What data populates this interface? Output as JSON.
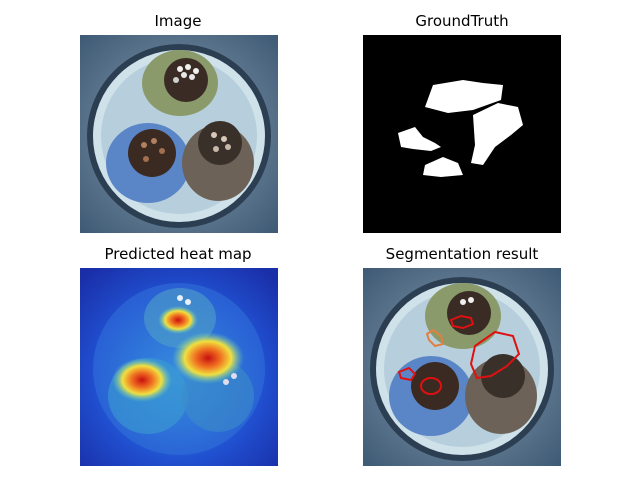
{
  "panels": {
    "image": {
      "title": "Image"
    },
    "ground_truth": {
      "title": "GroundTruth"
    },
    "heatmap": {
      "title": "Predicted heat map"
    },
    "segmentation": {
      "title": "Segmentation result"
    }
  },
  "colors": {
    "background_blue": "#4a6784",
    "tray": "#cfe2ea",
    "cable_green": "#8a9a6a",
    "cable_blue": "#5a86c8",
    "cable_brown": "#6d6258",
    "mask_white": "#ffffff",
    "mask_black": "#000000",
    "contour_red": "#e01010",
    "heat_low": "#1e3cc8",
    "heat_mid": "#40c8e0",
    "heat_high": "#e02020"
  }
}
